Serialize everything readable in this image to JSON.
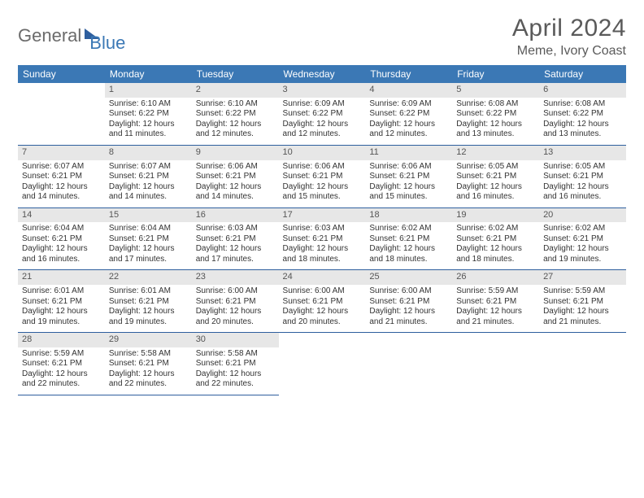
{
  "logo": {
    "part1": "General",
    "part2": "Blue"
  },
  "title": "April 2024",
  "location": "Meme, Ivory Coast",
  "colors": {
    "header_bg": "#3b78b5",
    "header_text": "#ffffff",
    "daynum_bg": "#e7e7e7",
    "border": "#2e5f9e",
    "text": "#333333",
    "logo_gray": "#6b6b6b",
    "logo_blue": "#3b78b5"
  },
  "day_headers": [
    "Sunday",
    "Monday",
    "Tuesday",
    "Wednesday",
    "Thursday",
    "Friday",
    "Saturday"
  ],
  "layout": {
    "first_weekday_index": 1,
    "days_in_month": 30,
    "weeks": 5
  },
  "days": {
    "1": {
      "sunrise": "6:10 AM",
      "sunset": "6:22 PM",
      "daylight": "12 hours and 11 minutes."
    },
    "2": {
      "sunrise": "6:10 AM",
      "sunset": "6:22 PM",
      "daylight": "12 hours and 12 minutes."
    },
    "3": {
      "sunrise": "6:09 AM",
      "sunset": "6:22 PM",
      "daylight": "12 hours and 12 minutes."
    },
    "4": {
      "sunrise": "6:09 AM",
      "sunset": "6:22 PM",
      "daylight": "12 hours and 12 minutes."
    },
    "5": {
      "sunrise": "6:08 AM",
      "sunset": "6:22 PM",
      "daylight": "12 hours and 13 minutes."
    },
    "6": {
      "sunrise": "6:08 AM",
      "sunset": "6:22 PM",
      "daylight": "12 hours and 13 minutes."
    },
    "7": {
      "sunrise": "6:07 AM",
      "sunset": "6:21 PM",
      "daylight": "12 hours and 14 minutes."
    },
    "8": {
      "sunrise": "6:07 AM",
      "sunset": "6:21 PM",
      "daylight": "12 hours and 14 minutes."
    },
    "9": {
      "sunrise": "6:06 AM",
      "sunset": "6:21 PM",
      "daylight": "12 hours and 14 minutes."
    },
    "10": {
      "sunrise": "6:06 AM",
      "sunset": "6:21 PM",
      "daylight": "12 hours and 15 minutes."
    },
    "11": {
      "sunrise": "6:06 AM",
      "sunset": "6:21 PM",
      "daylight": "12 hours and 15 minutes."
    },
    "12": {
      "sunrise": "6:05 AM",
      "sunset": "6:21 PM",
      "daylight": "12 hours and 16 minutes."
    },
    "13": {
      "sunrise": "6:05 AM",
      "sunset": "6:21 PM",
      "daylight": "12 hours and 16 minutes."
    },
    "14": {
      "sunrise": "6:04 AM",
      "sunset": "6:21 PM",
      "daylight": "12 hours and 16 minutes."
    },
    "15": {
      "sunrise": "6:04 AM",
      "sunset": "6:21 PM",
      "daylight": "12 hours and 17 minutes."
    },
    "16": {
      "sunrise": "6:03 AM",
      "sunset": "6:21 PM",
      "daylight": "12 hours and 17 minutes."
    },
    "17": {
      "sunrise": "6:03 AM",
      "sunset": "6:21 PM",
      "daylight": "12 hours and 18 minutes."
    },
    "18": {
      "sunrise": "6:02 AM",
      "sunset": "6:21 PM",
      "daylight": "12 hours and 18 minutes."
    },
    "19": {
      "sunrise": "6:02 AM",
      "sunset": "6:21 PM",
      "daylight": "12 hours and 18 minutes."
    },
    "20": {
      "sunrise": "6:02 AM",
      "sunset": "6:21 PM",
      "daylight": "12 hours and 19 minutes."
    },
    "21": {
      "sunrise": "6:01 AM",
      "sunset": "6:21 PM",
      "daylight": "12 hours and 19 minutes."
    },
    "22": {
      "sunrise": "6:01 AM",
      "sunset": "6:21 PM",
      "daylight": "12 hours and 19 minutes."
    },
    "23": {
      "sunrise": "6:00 AM",
      "sunset": "6:21 PM",
      "daylight": "12 hours and 20 minutes."
    },
    "24": {
      "sunrise": "6:00 AM",
      "sunset": "6:21 PM",
      "daylight": "12 hours and 20 minutes."
    },
    "25": {
      "sunrise": "6:00 AM",
      "sunset": "6:21 PM",
      "daylight": "12 hours and 21 minutes."
    },
    "26": {
      "sunrise": "5:59 AM",
      "sunset": "6:21 PM",
      "daylight": "12 hours and 21 minutes."
    },
    "27": {
      "sunrise": "5:59 AM",
      "sunset": "6:21 PM",
      "daylight": "12 hours and 21 minutes."
    },
    "28": {
      "sunrise": "5:59 AM",
      "sunset": "6:21 PM",
      "daylight": "12 hours and 22 minutes."
    },
    "29": {
      "sunrise": "5:58 AM",
      "sunset": "6:21 PM",
      "daylight": "12 hours and 22 minutes."
    },
    "30": {
      "sunrise": "5:58 AM",
      "sunset": "6:21 PM",
      "daylight": "12 hours and 22 minutes."
    }
  },
  "labels": {
    "sunrise": "Sunrise:",
    "sunset": "Sunset:",
    "daylight": "Daylight:"
  }
}
